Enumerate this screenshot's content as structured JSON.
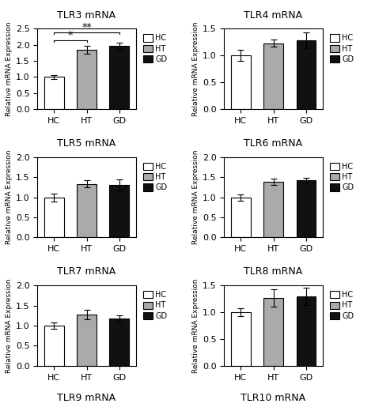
{
  "chart_data": [
    {
      "type": "bar",
      "title": "TLR3 mRNA",
      "ylabel": "Relative mRNA Expression",
      "categories": [
        "HC",
        "HT",
        "GD"
      ],
      "values": [
        1.0,
        1.85,
        1.97
      ],
      "errors": [
        0.06,
        0.12,
        0.1
      ],
      "colors": [
        "white",
        "#aaaaaa",
        "#111111"
      ],
      "ylim": [
        0,
        2.5
      ],
      "yticks": [
        0.0,
        0.5,
        1.0,
        1.5,
        2.0,
        2.5
      ],
      "legend": "upper left",
      "significance": [
        {
          "from": "HC",
          "to": "HT",
          "y": 2.15,
          "label": "*"
        },
        {
          "from": "HC",
          "to": "GD",
          "y": 2.38,
          "label": "**"
        }
      ]
    },
    {
      "type": "bar",
      "title": "TLR4 mRNA",
      "ylabel": "Relative mRNA Expression",
      "categories": [
        "HC",
        "HT",
        "GD"
      ],
      "values": [
        1.0,
        1.23,
        1.28
      ],
      "errors": [
        0.1,
        0.07,
        0.15
      ],
      "colors": [
        "white",
        "#aaaaaa",
        "#111111"
      ],
      "ylim": [
        0,
        1.5
      ],
      "yticks": [
        0.0,
        0.5,
        1.0,
        1.5
      ],
      "legend": "upper left",
      "significance": []
    },
    {
      "type": "bar",
      "title": "TLR5 mRNA",
      "ylabel": "Relative mRNA Expression",
      "categories": [
        "HC",
        "HT",
        "GD"
      ],
      "values": [
        1.0,
        1.33,
        1.3
      ],
      "errors": [
        0.1,
        0.09,
        0.14
      ],
      "colors": [
        "white",
        "#aaaaaa",
        "#111111"
      ],
      "ylim": [
        0,
        2.0
      ],
      "yticks": [
        0.0,
        0.5,
        1.0,
        1.5,
        2.0
      ],
      "legend": "upper left",
      "significance": []
    },
    {
      "type": "bar",
      "title": "TLR6 mRNA",
      "ylabel": "Relative mRNA Expression",
      "categories": [
        "HC",
        "HT",
        "GD"
      ],
      "values": [
        1.0,
        1.38,
        1.42
      ],
      "errors": [
        0.08,
        0.08,
        0.06
      ],
      "colors": [
        "white",
        "#aaaaaa",
        "#111111"
      ],
      "ylim": [
        0,
        2.0
      ],
      "yticks": [
        0.0,
        0.5,
        1.0,
        1.5,
        2.0
      ],
      "legend": "upper left",
      "significance": []
    },
    {
      "type": "bar",
      "title": "TLR7 mRNA",
      "ylabel": "Relative mRNA Expression",
      "categories": [
        "HC",
        "HT",
        "GD"
      ],
      "values": [
        1.0,
        1.27,
        1.18
      ],
      "errors": [
        0.07,
        0.12,
        0.08
      ],
      "colors": [
        "white",
        "#aaaaaa",
        "#111111"
      ],
      "ylim": [
        0,
        2.0
      ],
      "yticks": [
        0.0,
        0.5,
        1.0,
        1.5,
        2.0
      ],
      "legend": "upper left",
      "significance": []
    },
    {
      "type": "bar",
      "title": "TLR8 mRNA",
      "ylabel": "Relative mRNA Expression",
      "categories": [
        "HC",
        "HT",
        "GD"
      ],
      "values": [
        1.0,
        1.27,
        1.3
      ],
      "errors": [
        0.07,
        0.16,
        0.16
      ],
      "colors": [
        "white",
        "#aaaaaa",
        "#111111"
      ],
      "ylim": [
        0,
        1.5
      ],
      "yticks": [
        0.0,
        0.5,
        1.0,
        1.5
      ],
      "legend": "upper left",
      "significance": []
    }
  ],
  "annotations": [
    "TLR9 mRNA",
    "TLR10 mRNA"
  ]
}
